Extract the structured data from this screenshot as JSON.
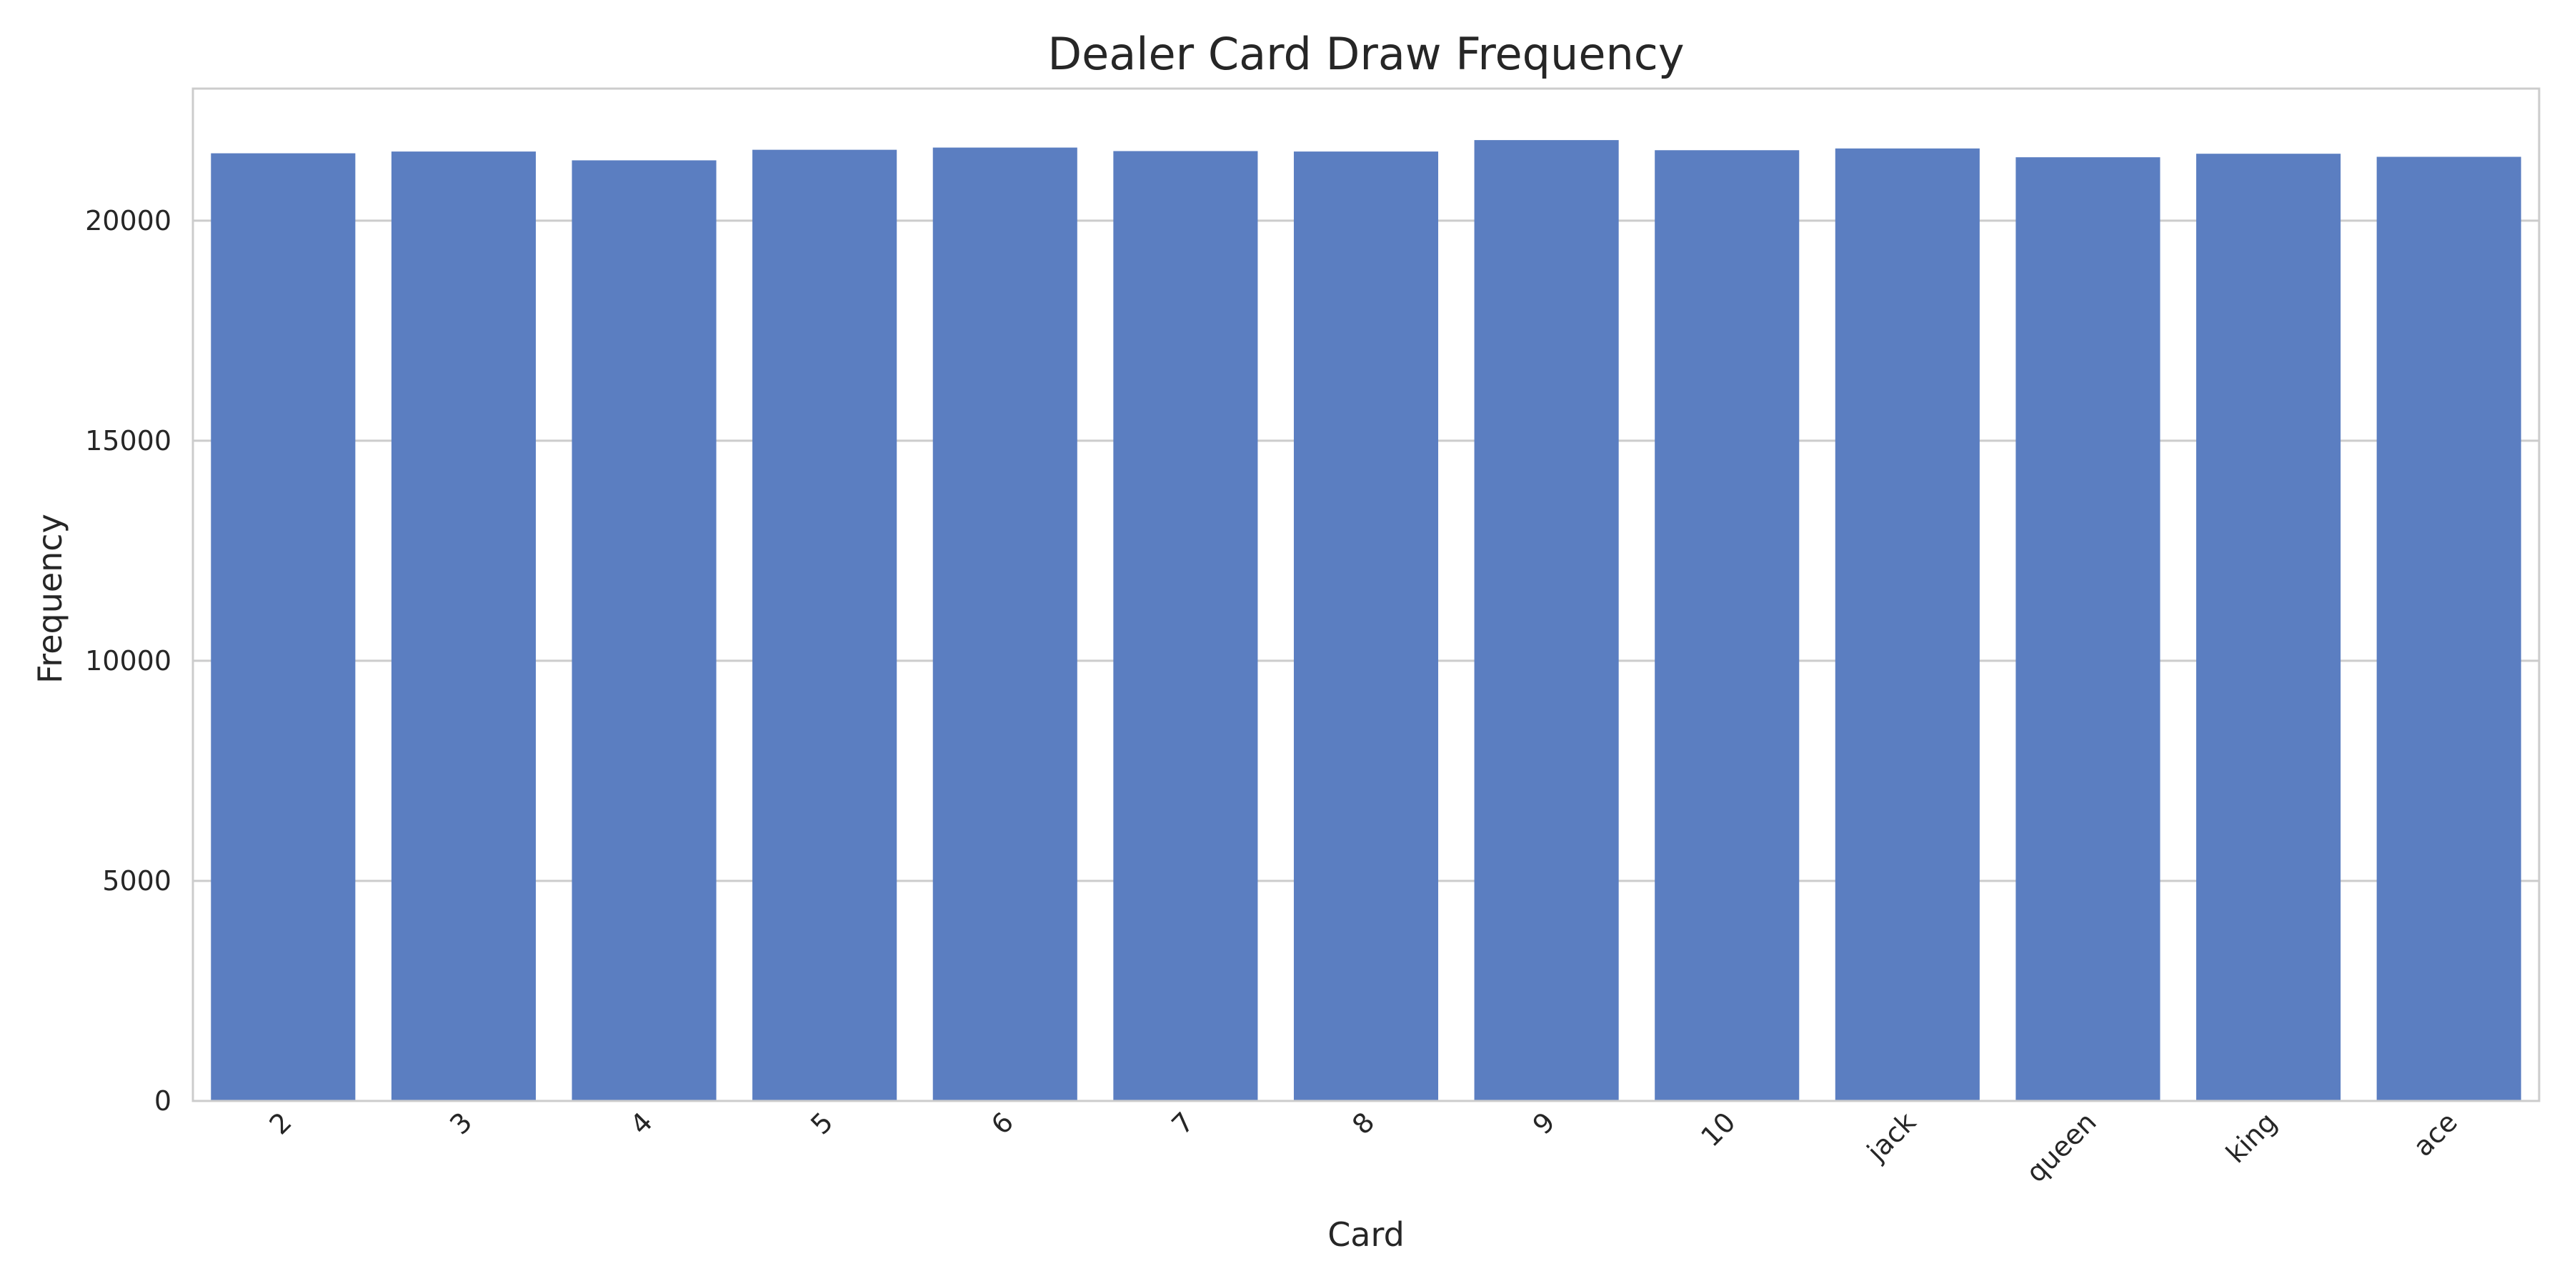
{
  "chart_data": {
    "type": "bar",
    "title": "Dealer Card Draw Frequency",
    "xlabel": "Card",
    "ylabel": "Frequency",
    "categories": [
      "2",
      "3",
      "4",
      "5",
      "6",
      "7",
      "8",
      "9",
      "10",
      "jack",
      "queen",
      "king",
      "ace"
    ],
    "values": [
      21530,
      21570,
      21370,
      21610,
      21660,
      21580,
      21570,
      21830,
      21600,
      21640,
      21440,
      21520,
      21450
    ],
    "ylim": [
      0,
      23000
    ],
    "yticks": [
      0,
      5000,
      10000,
      15000,
      20000
    ],
    "grid": "horizontal",
    "bar_color": "#5b7ec1",
    "xtick_rotation": -45
  }
}
